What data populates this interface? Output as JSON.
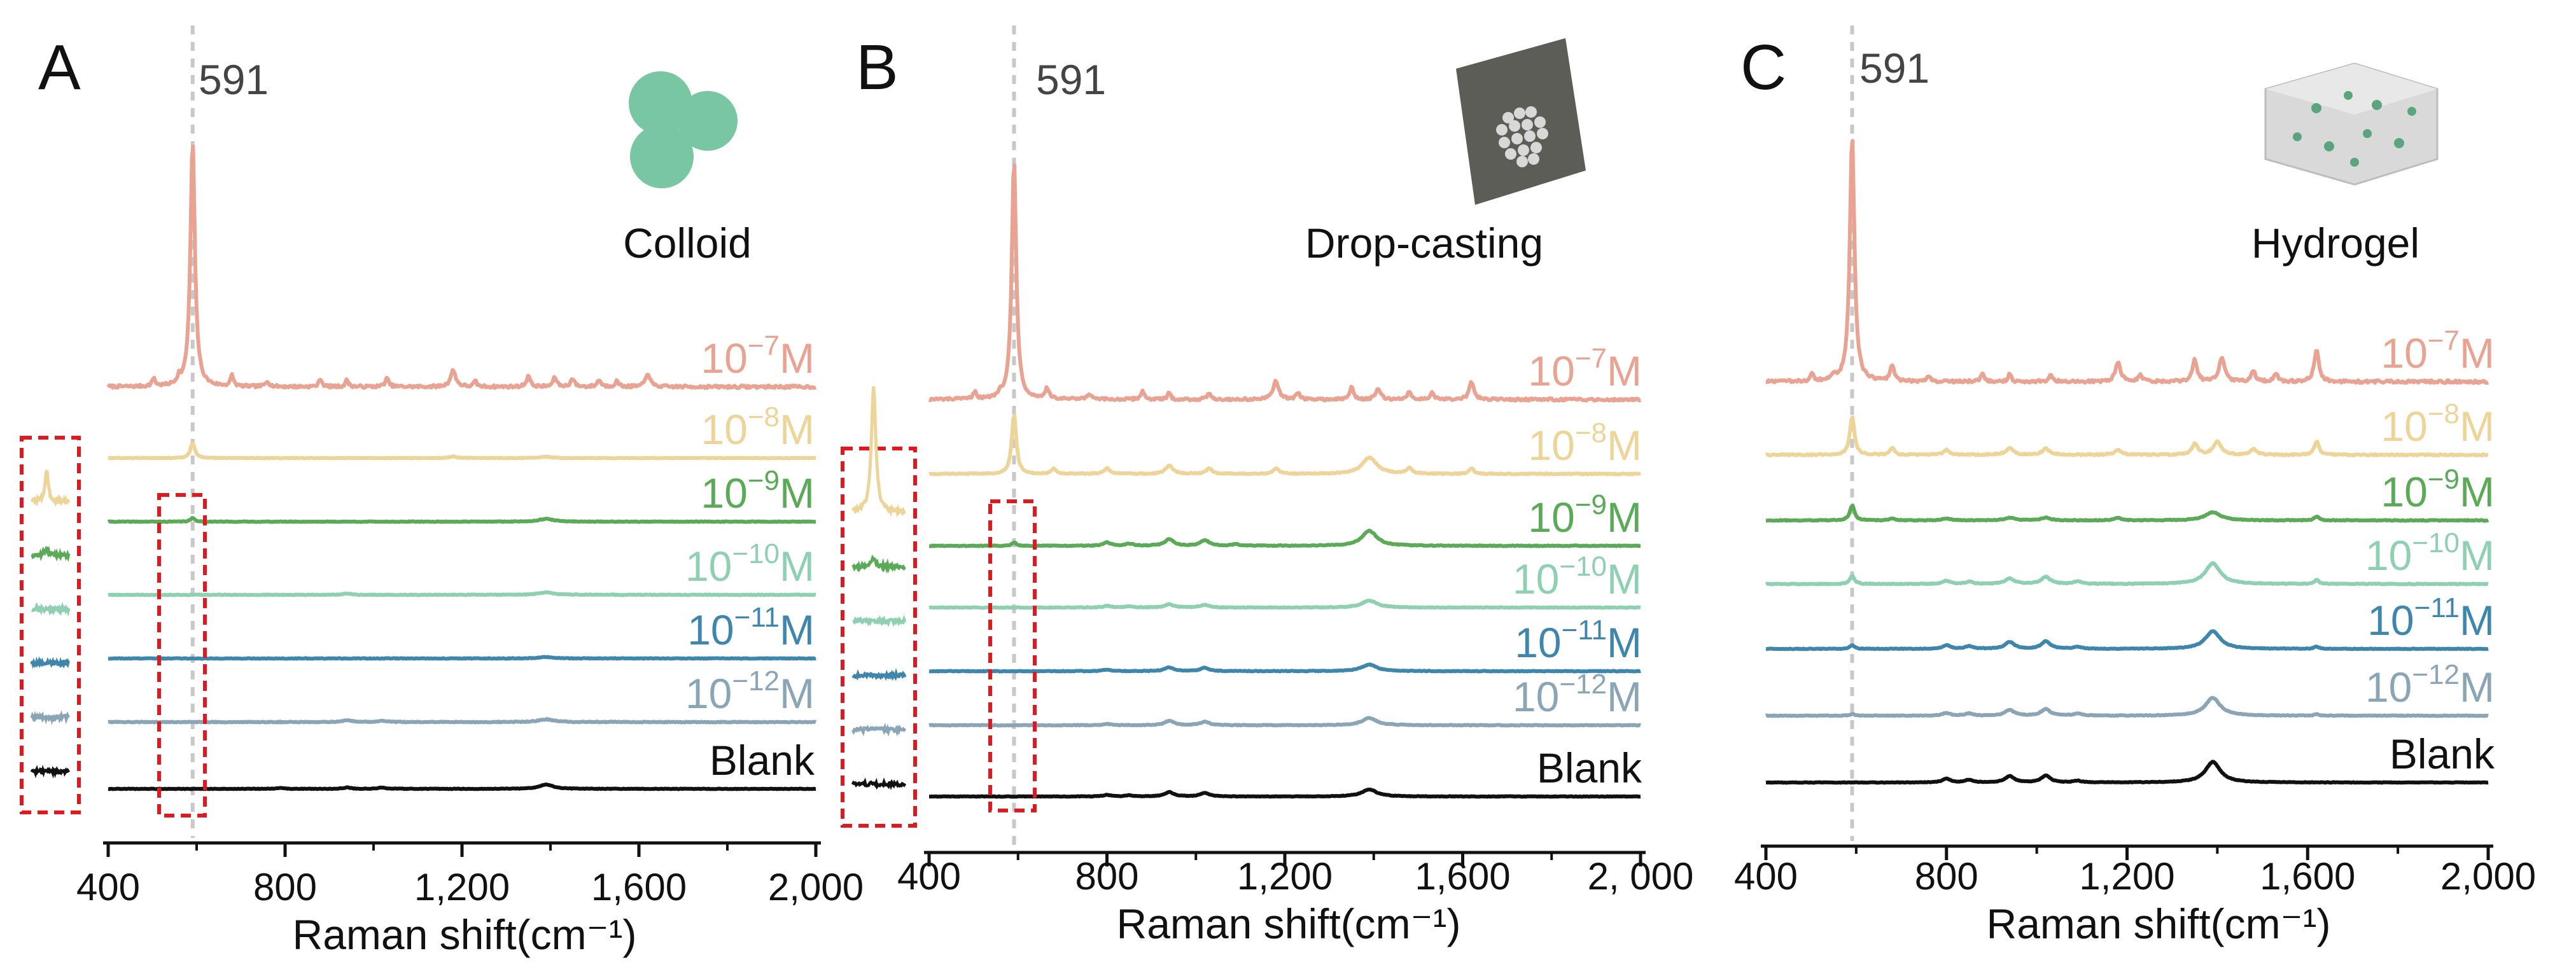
{
  "chart_data": [
    {
      "type": "line",
      "panel": "A",
      "title": "Colloid",
      "peak_label": "591",
      "peak_position": 591,
      "xlabel": "Raman shift(cm⁻¹)",
      "xlim": [
        400,
        2000
      ],
      "x_ticks": [
        "400",
        "800",
        "1,200",
        "1,600",
        "2,000"
      ],
      "x_tick_values": [
        400,
        800,
        1200,
        1600,
        2000
      ],
      "inset_boxes": true,
      "series": [
        {
          "name": "10^-7 M",
          "mantissa": "10",
          "exponent": "−7",
          "unit": "M",
          "color": "#e8a393",
          "baseline": 0,
          "peaks": [
            [
              591,
              90,
              6
            ],
            [
              503,
              3,
              4
            ],
            [
              560,
              2.5,
              4
            ],
            [
              680,
              4,
              4
            ],
            [
              760,
              2,
              5
            ],
            [
              880,
              3,
              4
            ],
            [
              940,
              2.5,
              4
            ],
            [
              1030,
              3,
              5
            ],
            [
              1180,
              6,
              7
            ],
            [
              1230,
              2,
              4
            ],
            [
              1350,
              4,
              5
            ],
            [
              1410,
              3.5,
              5
            ],
            [
              1450,
              3,
              5
            ],
            [
              1510,
              2.5,
              5
            ],
            [
              1550,
              2,
              5
            ],
            [
              1620,
              5,
              6
            ]
          ],
          "noise": 1.0
        },
        {
          "name": "10^-8 M",
          "mantissa": "10",
          "exponent": "−8",
          "unit": "M",
          "color": "#edd59a",
          "baseline": 0,
          "peaks": [
            [
              591,
              5.5,
              6
            ],
            [
              1180,
              0.6,
              8
            ],
            [
              1390,
              0.5,
              15
            ]
          ],
          "noise": 0.25
        },
        {
          "name": "10^-9 M",
          "mantissa": "10",
          "exponent": "−9",
          "unit": "M",
          "color": "#5aaa58",
          "baseline": 0,
          "peaks": [
            [
              591,
              1.3,
              6
            ],
            [
              1390,
              1.0,
              20
            ]
          ],
          "noise": 0.25
        },
        {
          "name": "10^-10 M",
          "mantissa": "10",
          "exponent": "−10",
          "unit": "M",
          "color": "#8fcfb2",
          "baseline": 0,
          "peaks": [
            [
              940,
              0.4,
              12
            ],
            [
              1390,
              0.9,
              20
            ]
          ],
          "noise": 0.25
        },
        {
          "name": "10^-11 M",
          "mantissa": "10",
          "exponent": "−11",
          "unit": "M",
          "color": "#3f86ad",
          "baseline": 0,
          "peaks": [
            [
              1390,
              0.5,
              20
            ]
          ],
          "noise": 0.25
        },
        {
          "name": "10^-12 M",
          "mantissa": "10",
          "exponent": "−12",
          "unit": "M",
          "color": "#8aa5b5",
          "baseline": 0,
          "peaks": [
            [
              940,
              0.6,
              12
            ],
            [
              1020,
              0.5,
              12
            ],
            [
              1390,
              1.0,
              20
            ]
          ],
          "noise": 0.3
        },
        {
          "name": "Blank",
          "color": "#111111",
          "baseline": 0,
          "peaks": [
            [
              790,
              0.3,
              10
            ],
            [
              940,
              0.5,
              10
            ],
            [
              1020,
              0.5,
              10
            ],
            [
              1390,
              1.6,
              18
            ]
          ],
          "noise": 0.2
        }
      ]
    },
    {
      "type": "line",
      "panel": "B",
      "title": "Drop-casting",
      "peak_label": "591",
      "peak_position": 591,
      "xlabel": "Raman shift(cm⁻¹)",
      "xlim": [
        400,
        2000
      ],
      "x_ticks": [
        "400",
        "800",
        "1,200",
        "1,600",
        "2, 000"
      ],
      "x_tick_values": [
        400,
        800,
        1200,
        1600,
        2000
      ],
      "inset_boxes": true,
      "series": [
        {
          "name": "10^-7 M",
          "mantissa": "10",
          "exponent": "−7",
          "unit": "M",
          "color": "#e8a393",
          "baseline": 0,
          "peaks": [
            [
              591,
              88,
              6
            ],
            [
              503,
              3,
              4
            ],
            [
              560,
              2,
              4
            ],
            [
              665,
              4,
              5
            ],
            [
              760,
              2,
              5
            ],
            [
              880,
              3,
              5
            ],
            [
              940,
              2.5,
              4
            ],
            [
              1030,
              2.5,
              5
            ],
            [
              1180,
              7,
              7
            ],
            [
              1230,
              2.5,
              5
            ],
            [
              1350,
              4.5,
              5
            ],
            [
              1410,
              4,
              6
            ],
            [
              1480,
              3,
              5
            ],
            [
              1530,
              2.5,
              5
            ],
            [
              1620,
              6.5,
              6
            ]
          ],
          "noise": 0.9
        },
        {
          "name": "10^-8 M",
          "mantissa": "10",
          "exponent": "−8",
          "unit": "M",
          "color": "#edd59a",
          "baseline": 0,
          "peaks": [
            [
              591,
              22,
              6
            ],
            [
              680,
              2,
              6
            ],
            [
              800,
              2,
              8
            ],
            [
              940,
              3,
              10
            ],
            [
              1030,
              2,
              8
            ],
            [
              1180,
              2,
              8
            ],
            [
              1390,
              6,
              20
            ],
            [
              1480,
              2,
              8
            ],
            [
              1620,
              2,
              6
            ]
          ],
          "noise": 0.4
        },
        {
          "name": "10^-9 M",
          "mantissa": "10",
          "exponent": "−9",
          "unit": "M",
          "color": "#5aaa58",
          "baseline": 0,
          "peaks": [
            [
              591,
              1.3,
              6
            ],
            [
              800,
              1.2,
              10
            ],
            [
              850,
              0.8,
              10
            ],
            [
              940,
              2.4,
              12
            ],
            [
              1020,
              2.0,
              12
            ],
            [
              1090,
              0.6,
              10
            ],
            [
              1390,
              5.5,
              20
            ]
          ],
          "noise": 0.3
        },
        {
          "name": "10^-10 M",
          "mantissa": "10",
          "exponent": "−10",
          "unit": "M",
          "color": "#8fcfb2",
          "baseline": 0,
          "peaks": [
            [
              800,
              0.6,
              10
            ],
            [
              850,
              0.5,
              10
            ],
            [
              940,
              1.2,
              12
            ],
            [
              1020,
              1.0,
              12
            ],
            [
              1390,
              2.6,
              20
            ]
          ],
          "noise": 0.25
        },
        {
          "name": "10^-11 M",
          "mantissa": "10",
          "exponent": "−11",
          "unit": "M",
          "color": "#3f86ad",
          "baseline": 0,
          "peaks": [
            [
              800,
              0.6,
              10
            ],
            [
              940,
              1.4,
              12
            ],
            [
              1020,
              1.2,
              12
            ],
            [
              1390,
              2.4,
              20
            ]
          ],
          "noise": 0.25
        },
        {
          "name": "10^-12 M",
          "mantissa": "10",
          "exponent": "−12",
          "unit": "M",
          "color": "#8aa5b5",
          "baseline": 0,
          "peaks": [
            [
              800,
              0.5,
              10
            ],
            [
              940,
              1.6,
              12
            ],
            [
              1020,
              1.3,
              12
            ],
            [
              1390,
              2.6,
              20
            ]
          ],
          "noise": 0.25
        },
        {
          "name": "Blank",
          "color": "#111111",
          "baseline": 0,
          "peaks": [
            [
              800,
              0.6,
              10
            ],
            [
              850,
              0.4,
              10
            ],
            [
              940,
              1.6,
              12
            ],
            [
              1020,
              1.3,
              12
            ],
            [
              1390,
              2.6,
              20
            ]
          ],
          "noise": 0.2
        }
      ]
    },
    {
      "type": "line",
      "panel": "C",
      "title": "Hydrogel",
      "peak_label": "591",
      "peak_position": 591,
      "xlabel": "Raman shift(cm⁻¹)",
      "xlim": [
        400,
        2000
      ],
      "x_ticks": [
        "400",
        "800",
        "1,200",
        "1,600",
        "2,000"
      ],
      "x_tick_values": [
        400,
        800,
        1200,
        1600,
        2000
      ],
      "inset_boxes": false,
      "series": [
        {
          "name": "10^-7 M",
          "mantissa": "10",
          "exponent": "−7",
          "unit": "M",
          "color": "#e8a393",
          "baseline": 0,
          "peaks": [
            [
              591,
              90,
              6
            ],
            [
              503,
              3,
              4
            ],
            [
              550,
              2,
              4
            ],
            [
              680,
              6,
              5
            ],
            [
              760,
              2,
              5
            ],
            [
              880,
              3,
              5
            ],
            [
              940,
              3,
              4
            ],
            [
              1030,
              2.5,
              5
            ],
            [
              1180,
              7,
              7
            ],
            [
              1230,
              2.5,
              5
            ],
            [
              1350,
              8,
              6
            ],
            [
              1410,
              9,
              7
            ],
            [
              1480,
              4,
              5
            ],
            [
              1530,
              3,
              5
            ],
            [
              1620,
              12,
              6
            ]
          ],
          "noise": 1.0
        },
        {
          "name": "10^-8 M",
          "mantissa": "10",
          "exponent": "−8",
          "unit": "M",
          "color": "#edd59a",
          "baseline": 0,
          "peaks": [
            [
              591,
              14,
              6
            ],
            [
              680,
              2.5,
              6
            ],
            [
              800,
              1.8,
              8
            ],
            [
              940,
              2.4,
              10
            ],
            [
              1020,
              2.2,
              10
            ],
            [
              1180,
              2.0,
              8
            ],
            [
              1350,
              4,
              8
            ],
            [
              1400,
              5,
              10
            ],
            [
              1480,
              2,
              8
            ],
            [
              1620,
              5,
              6
            ]
          ],
          "noise": 0.5
        },
        {
          "name": "10^-9 M",
          "mantissa": "10",
          "exponent": "−9",
          "unit": "M",
          "color": "#5aaa58",
          "baseline": 0,
          "peaks": [
            [
              591,
              5.5,
              6
            ],
            [
              680,
              0.8,
              6
            ],
            [
              800,
              0.7,
              10
            ],
            [
              940,
              1.0,
              12
            ],
            [
              1020,
              1.0,
              12
            ],
            [
              1180,
              0.8,
              10
            ],
            [
              1390,
              3.0,
              20
            ],
            [
              1620,
              1.5,
              6
            ]
          ],
          "noise": 0.3
        },
        {
          "name": "10^-10 M",
          "mantissa": "10",
          "exponent": "−10",
          "unit": "M",
          "color": "#8fcfb2",
          "baseline": 0,
          "peaks": [
            [
              591,
              3.0,
              6
            ],
            [
              800,
              1.2,
              10
            ],
            [
              850,
              0.8,
              10
            ],
            [
              940,
              2.0,
              12
            ],
            [
              1020,
              2.6,
              12
            ],
            [
              1090,
              1.0,
              10
            ],
            [
              1390,
              7.5,
              20
            ],
            [
              1620,
              1.4,
              6
            ]
          ],
          "noise": 0.3
        },
        {
          "name": "10^-11 M",
          "mantissa": "10",
          "exponent": "−11",
          "unit": "M",
          "color": "#3f86ad",
          "baseline": 0,
          "peaks": [
            [
              591,
              1.3,
              6
            ],
            [
              800,
              1.4,
              10
            ],
            [
              850,
              1.0,
              10
            ],
            [
              940,
              2.5,
              12
            ],
            [
              1020,
              2.7,
              12
            ],
            [
              1090,
              0.8,
              10
            ],
            [
              1390,
              6.5,
              20
            ],
            [
              1620,
              0.8,
              6
            ]
          ],
          "noise": 0.25
        },
        {
          "name": "10^-12 M",
          "mantissa": "10",
          "exponent": "−12",
          "unit": "M",
          "color": "#8aa5b5",
          "baseline": 0,
          "peaks": [
            [
              591,
              0.6,
              6
            ],
            [
              800,
              1.0,
              10
            ],
            [
              850,
              0.8,
              10
            ],
            [
              940,
              2.1,
              12
            ],
            [
              1020,
              2.4,
              12
            ],
            [
              1090,
              0.8,
              10
            ],
            [
              1390,
              6.5,
              20
            ],
            [
              1620,
              0.5,
              6
            ]
          ],
          "noise": 0.25
        },
        {
          "name": "Blank",
          "color": "#111111",
          "baseline": 0,
          "peaks": [
            [
              800,
              1.4,
              10
            ],
            [
              850,
              1.0,
              10
            ],
            [
              940,
              2.3,
              12
            ],
            [
              1020,
              2.5,
              12
            ],
            [
              1090,
              0.6,
              10
            ],
            [
              1390,
              7.5,
              20
            ]
          ],
          "noise": 0.2
        }
      ]
    }
  ]
}
